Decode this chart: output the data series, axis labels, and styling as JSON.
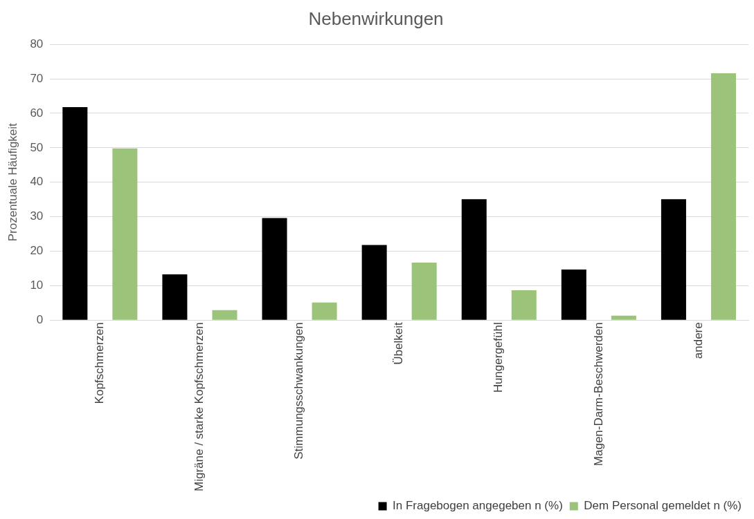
{
  "chart_data": {
    "type": "bar",
    "title": "Nebenwirkungen",
    "ylabel": "Prozentuale Häufigkeit",
    "categories": [
      "Kopfschmerzen",
      "Migräne / starke Kopfschmerzen",
      "Stimmungsschwankungen",
      "Übelkeit",
      "Hungergefühl",
      "Magen-Darm-Beschwerden",
      "andere"
    ],
    "series": [
      {
        "name": "In Fragebogen angegeben n (%)",
        "color": "#000000",
        "values": [
          61.8,
          13.3,
          29.6,
          21.8,
          35.1,
          14.7,
          35.1
        ]
      },
      {
        "name": "Dem Personal gemeldet n (%)",
        "color": "#9bc47a",
        "values": [
          49.8,
          2.9,
          5.1,
          16.7,
          8.7,
          1.3,
          71.6
        ]
      }
    ],
    "ylim": [
      0,
      80
    ],
    "yticks": [
      0,
      10,
      20,
      30,
      40,
      50,
      60,
      70,
      80
    ],
    "grid": "y",
    "legend": "bottom right"
  }
}
